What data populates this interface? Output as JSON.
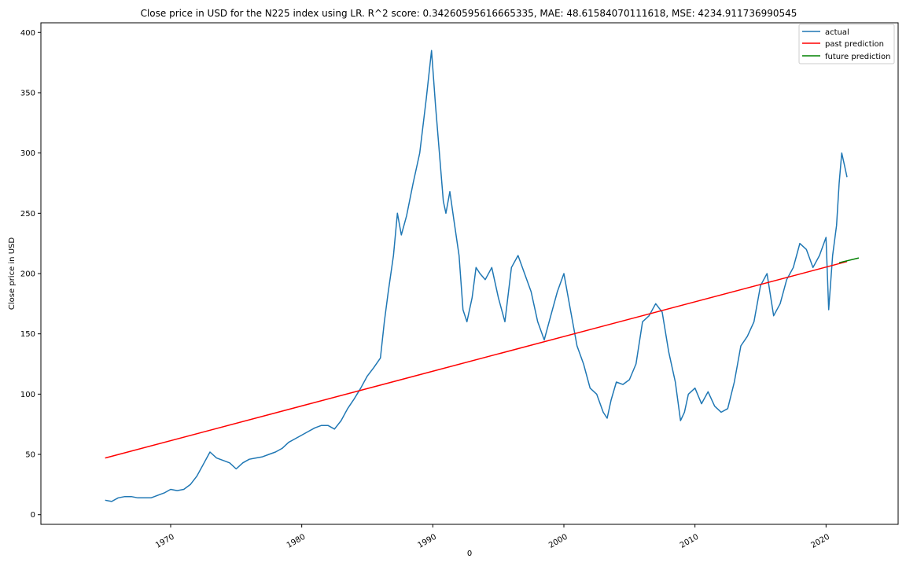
{
  "chart_data": {
    "type": "line",
    "title": "Close price in USD for the N225 index using LR. R^2 score: 0.34260595616665335, MAE: 48.61584070111618, MSE: 4234.911736990545",
    "xlabel": "0",
    "ylabel": "Close price in USD",
    "xlim": [
      1960.1,
      2025.5
    ],
    "ylim": [
      -8,
      408
    ],
    "x_ticks": [
      1970,
      1980,
      1990,
      2000,
      2010,
      2020
    ],
    "x_tick_labels": [
      "1970",
      "1980",
      "1990",
      "2000",
      "2010",
      "2020"
    ],
    "y_ticks": [
      0,
      50,
      100,
      150,
      200,
      250,
      300,
      350,
      400
    ],
    "y_tick_labels": [
      "0",
      "50",
      "100",
      "150",
      "200",
      "250",
      "300",
      "350",
      "400"
    ],
    "grid": false,
    "legend_position": "top-right",
    "series": [
      {
        "name": "actual",
        "color": "#1f77b4",
        "points": [
          [
            1965.0,
            12
          ],
          [
            1965.5,
            11
          ],
          [
            1966.0,
            14
          ],
          [
            1966.5,
            15
          ],
          [
            1967.0,
            15
          ],
          [
            1967.5,
            14
          ],
          [
            1968.0,
            14
          ],
          [
            1968.5,
            14
          ],
          [
            1969.0,
            16
          ],
          [
            1969.5,
            18
          ],
          [
            1970.0,
            21
          ],
          [
            1970.5,
            20
          ],
          [
            1971.0,
            21
          ],
          [
            1971.5,
            25
          ],
          [
            1972.0,
            32
          ],
          [
            1972.5,
            42
          ],
          [
            1973.0,
            52
          ],
          [
            1973.5,
            47
          ],
          [
            1974.0,
            45
          ],
          [
            1974.5,
            43
          ],
          [
            1975.0,
            38
          ],
          [
            1975.5,
            43
          ],
          [
            1976.0,
            46
          ],
          [
            1976.5,
            47
          ],
          [
            1977.0,
            48
          ],
          [
            1977.5,
            50
          ],
          [
            1978.0,
            52
          ],
          [
            1978.5,
            55
          ],
          [
            1979.0,
            60
          ],
          [
            1979.5,
            63
          ],
          [
            1980.0,
            66
          ],
          [
            1980.5,
            69
          ],
          [
            1981.0,
            72
          ],
          [
            1981.5,
            74
          ],
          [
            1982.0,
            74
          ],
          [
            1982.5,
            71
          ],
          [
            1983.0,
            78
          ],
          [
            1983.5,
            88
          ],
          [
            1984.0,
            96
          ],
          [
            1984.5,
            105
          ],
          [
            1985.0,
            115
          ],
          [
            1985.5,
            122
          ],
          [
            1986.0,
            130
          ],
          [
            1986.3,
            160
          ],
          [
            1986.6,
            185
          ],
          [
            1987.0,
            215
          ],
          [
            1987.3,
            250
          ],
          [
            1987.6,
            232
          ],
          [
            1988.0,
            248
          ],
          [
            1988.5,
            275
          ],
          [
            1989.0,
            300
          ],
          [
            1989.5,
            345
          ],
          [
            1989.9,
            385
          ],
          [
            1990.2,
            340
          ],
          [
            1990.5,
            300
          ],
          [
            1990.8,
            260
          ],
          [
            1991.0,
            250
          ],
          [
            1991.3,
            268
          ],
          [
            1991.6,
            245
          ],
          [
            1992.0,
            215
          ],
          [
            1992.3,
            170
          ],
          [
            1992.6,
            160
          ],
          [
            1993.0,
            180
          ],
          [
            1993.3,
            205
          ],
          [
            1993.6,
            200
          ],
          [
            1994.0,
            195
          ],
          [
            1994.5,
            205
          ],
          [
            1995.0,
            180
          ],
          [
            1995.5,
            160
          ],
          [
            1996.0,
            205
          ],
          [
            1996.5,
            215
          ],
          [
            1997.0,
            200
          ],
          [
            1997.5,
            185
          ],
          [
            1998.0,
            160
          ],
          [
            1998.5,
            145
          ],
          [
            1999.0,
            165
          ],
          [
            1999.5,
            185
          ],
          [
            2000.0,
            200
          ],
          [
            2000.5,
            170
          ],
          [
            2001.0,
            140
          ],
          [
            2001.5,
            125
          ],
          [
            2002.0,
            105
          ],
          [
            2002.5,
            100
          ],
          [
            2003.0,
            85
          ],
          [
            2003.3,
            80
          ],
          [
            2003.6,
            95
          ],
          [
            2004.0,
            110
          ],
          [
            2004.5,
            108
          ],
          [
            2005.0,
            112
          ],
          [
            2005.5,
            125
          ],
          [
            2006.0,
            160
          ],
          [
            2006.5,
            165
          ],
          [
            2007.0,
            175
          ],
          [
            2007.5,
            168
          ],
          [
            2008.0,
            135
          ],
          [
            2008.5,
            110
          ],
          [
            2008.9,
            78
          ],
          [
            2009.2,
            85
          ],
          [
            2009.5,
            100
          ],
          [
            2010.0,
            105
          ],
          [
            2010.5,
            92
          ],
          [
            2011.0,
            102
          ],
          [
            2011.5,
            90
          ],
          [
            2012.0,
            85
          ],
          [
            2012.5,
            88
          ],
          [
            2013.0,
            110
          ],
          [
            2013.5,
            140
          ],
          [
            2014.0,
            148
          ],
          [
            2014.5,
            160
          ],
          [
            2015.0,
            190
          ],
          [
            2015.5,
            200
          ],
          [
            2016.0,
            165
          ],
          [
            2016.5,
            175
          ],
          [
            2017.0,
            195
          ],
          [
            2017.5,
            205
          ],
          [
            2018.0,
            225
          ],
          [
            2018.5,
            220
          ],
          [
            2019.0,
            205
          ],
          [
            2019.5,
            215
          ],
          [
            2020.0,
            230
          ],
          [
            2020.2,
            170
          ],
          [
            2020.5,
            215
          ],
          [
            2020.8,
            240
          ],
          [
            2021.0,
            275
          ],
          [
            2021.2,
            300
          ],
          [
            2021.4,
            290
          ],
          [
            2021.6,
            280
          ]
        ]
      },
      {
        "name": "past prediction",
        "color": "#ff0000",
        "points": [
          [
            1965.0,
            47
          ],
          [
            2021.6,
            210
          ]
        ]
      },
      {
        "name": "future prediction",
        "color": "#008000",
        "points": [
          [
            2021.0,
            209
          ],
          [
            2022.5,
            213
          ]
        ]
      }
    ]
  }
}
